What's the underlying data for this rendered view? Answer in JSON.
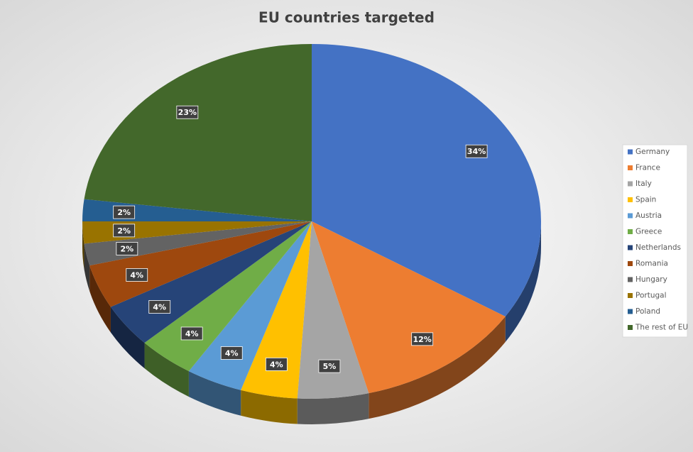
{
  "chart_data": {
    "type": "pie",
    "title": "EU countries targeted",
    "categories": [
      "Germany",
      "France",
      "Italy",
      "Spain",
      "Austria",
      "Greece",
      "Netherlands",
      "Romania",
      "Hungary",
      "Portugal",
      "Poland",
      "The rest of EU"
    ],
    "values": [
      34,
      12,
      5,
      4,
      4,
      4,
      4,
      4,
      2,
      2,
      2,
      23
    ],
    "value_labels": [
      "34%",
      "12%",
      "5%",
      "4%",
      "4%",
      "4%",
      "4%",
      "4%",
      "2%",
      "2%",
      "2%",
      "23%"
    ],
    "colors": [
      "#4472c4",
      "#ed7d31",
      "#a5a5a5",
      "#ffc000",
      "#5b9bd5",
      "#70ad47",
      "#264478",
      "#9e480e",
      "#636363",
      "#997300",
      "#255e91",
      "#43682b"
    ],
    "legend": "right"
  }
}
